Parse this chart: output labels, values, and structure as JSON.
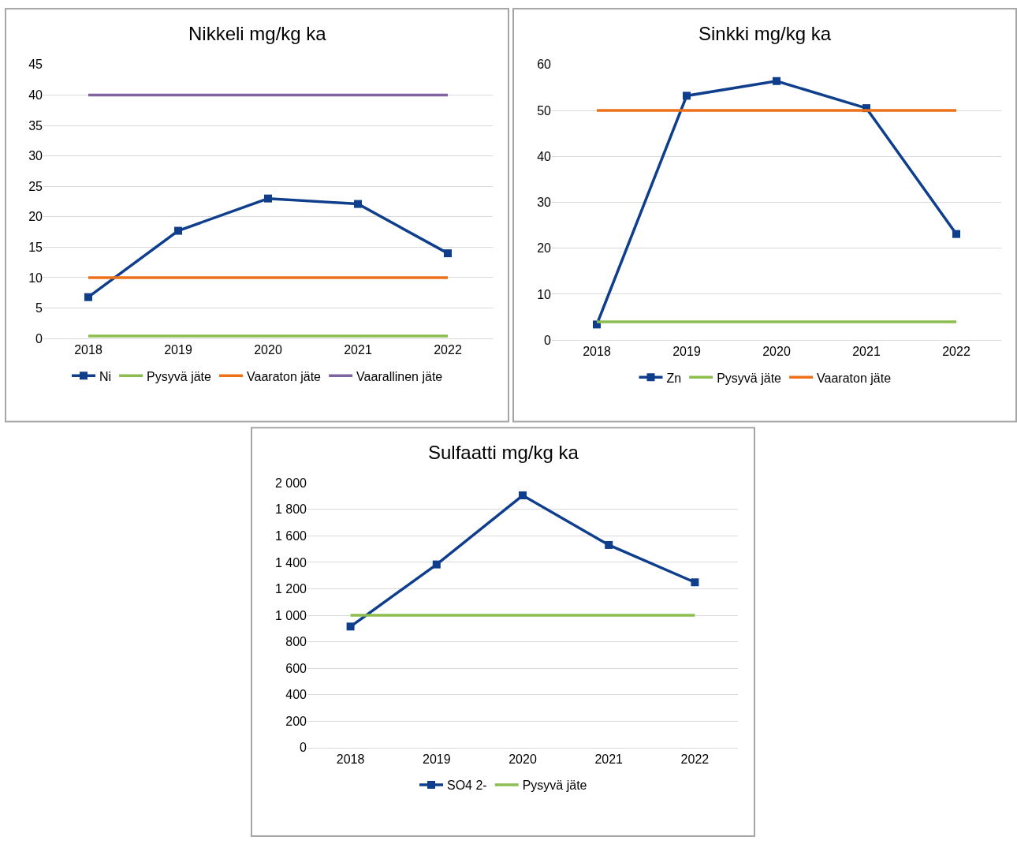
{
  "chart_data": [
    {
      "type": "line",
      "title": "Nikkeli mg/kg ka",
      "categories": [
        "2018",
        "2019",
        "2020",
        "2021",
        "2022"
      ],
      "ylim": [
        0,
        45
      ],
      "yticks": [
        0,
        5,
        10,
        15,
        20,
        25,
        30,
        35,
        40,
        45
      ],
      "grid": "y",
      "legend": "bottom",
      "series": [
        {
          "name": "Ni",
          "color": "#0f3f8c",
          "marker": "square",
          "values": [
            6.8,
            17.7,
            23.0,
            22.1,
            14.0
          ]
        },
        {
          "name": "Pysyvä jäte",
          "color": "#8cbd4f",
          "marker": "none",
          "values": [
            0.4,
            0.4,
            0.4,
            0.4,
            0.4
          ]
        },
        {
          "name": "Vaaraton jäte",
          "color": "#ee7018",
          "marker": "none",
          "values": [
            10,
            10,
            10,
            10,
            10
          ]
        },
        {
          "name": "Vaarallinen jäte",
          "color": "#8064a2",
          "marker": "none",
          "values": [
            40,
            40,
            40,
            40,
            40
          ]
        }
      ]
    },
    {
      "type": "line",
      "title": "Sinkki mg/kg ka",
      "categories": [
        "2018",
        "2019",
        "2020",
        "2021",
        "2022"
      ],
      "ylim": [
        0,
        60
      ],
      "yticks": [
        0,
        10,
        20,
        30,
        40,
        50,
        60
      ],
      "grid": "y",
      "legend": "bottom",
      "series": [
        {
          "name": "Zn",
          "color": "#0f3f8c",
          "marker": "square",
          "values": [
            3.4,
            53.2,
            56.4,
            50.5,
            23.1
          ]
        },
        {
          "name": "Pysyvä jäte",
          "color": "#8cbd4f",
          "marker": "none",
          "values": [
            4,
            4,
            4,
            4,
            4
          ]
        },
        {
          "name": "Vaaraton jäte",
          "color": "#ee7018",
          "marker": "none",
          "values": [
            50,
            50,
            50,
            50,
            50
          ]
        }
      ]
    },
    {
      "type": "line",
      "title": "Sulfaatti mg/kg ka",
      "categories": [
        "2018",
        "2019",
        "2020",
        "2021",
        "2022"
      ],
      "ylim": [
        0,
        2000
      ],
      "yticks": [
        0,
        200,
        400,
        600,
        800,
        {
          "value": 1000,
          "label": "1 000"
        },
        {
          "value": 1200,
          "label": "1 200"
        },
        {
          "value": 1400,
          "label": "1 400"
        },
        {
          "value": 1600,
          "label": "1 600"
        },
        {
          "value": 1800,
          "label": "1 800"
        },
        {
          "value": 2000,
          "label": "2 000"
        }
      ],
      "grid": "y",
      "legend": "bottom",
      "series": [
        {
          "name": "SO4 2-",
          "color": "#0f3f8c",
          "marker": "square",
          "values": [
            915,
            1384,
            1906,
            1531,
            1249
          ]
        },
        {
          "name": "Pysyvä jäte",
          "color": "#8cbd4f",
          "marker": "none",
          "values": [
            1000,
            1000,
            1000,
            1000,
            1000
          ]
        }
      ]
    }
  ]
}
